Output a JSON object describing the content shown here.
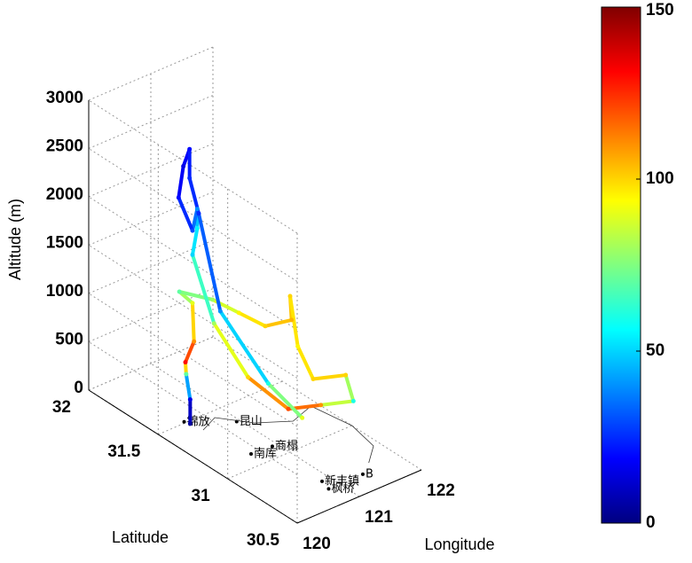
{
  "chart_data": {
    "type": "scatter3d",
    "xlabel": "Longitude",
    "ylabel": "Latitude",
    "zlabel": "Altitude (m)",
    "xlim": [
      120,
      122
    ],
    "xticks": [
      120,
      121,
      122
    ],
    "ylim": [
      30.5,
      32
    ],
    "yticks": [
      30.5,
      31,
      31.5,
      32
    ],
    "zlim": [
      0,
      3000
    ],
    "zticks": [
      0,
      500,
      1000,
      1500,
      2000,
      2500,
      3000
    ],
    "clim": [
      0,
      150
    ],
    "cticks": [
      0,
      50,
      100,
      150
    ],
    "colormap": "jet",
    "grid": true,
    "x": [
      120.47,
      120.47,
      120.45,
      120.55,
      120.8,
      121.0,
      120.9,
      121.1,
      121.3,
      121.5,
      121.7,
      121.9,
      121.8,
      121.6,
      121.9,
      121.8,
      121.5,
      121.2,
      121.0,
      120.9,
      121.0,
      121.3,
      121.3,
      121.0,
      121.0,
      121.3,
      121.4,
      121.4,
      121.1,
      121.0,
      121.1,
      121.2
    ],
    "y": [
      31.48,
      31.48,
      31.5,
      31.55,
      31.6,
      31.7,
      31.75,
      31.6,
      31.5,
      31.4,
      31.3,
      31.4,
      31.3,
      31.1,
      31.0,
      30.9,
      31.0,
      31.1,
      31.3,
      31.5,
      31.7,
      31.8,
      31.8,
      31.7,
      31.8,
      31.9,
      31.9,
      31.9,
      31.7,
      31.5,
      31.2,
      31.0
    ],
    "z": [
      0,
      250,
      500,
      550,
      650,
      900,
      1000,
      1000,
      900,
      800,
      900,
      1000,
      600,
      500,
      550,
      400,
      350,
      300,
      500,
      900,
      1400,
      1500,
      1700,
      1650,
      1900,
      2050,
      2200,
      1900,
      1800,
      1000,
      500,
      300
    ],
    "c": [
      5,
      15,
      70,
      130,
      110,
      90,
      70,
      80,
      95,
      100,
      105,
      100,
      95,
      100,
      100,
      60,
      110,
      120,
      100,
      80,
      50,
      55,
      40,
      30,
      20,
      15,
      20,
      25,
      25,
      40,
      60,
      90
    ],
    "annotations": [
      {
        "text": "锦放",
        "lon": 120.44,
        "lat": 31.51
      },
      {
        "text": "昆山",
        "lon": 120.95,
        "lat": 31.36
      },
      {
        "text": "商榻",
        "lon": 120.92,
        "lat": 31.09
      },
      {
        "text": "南库",
        "lon": 120.6,
        "lat": 31.1
      },
      {
        "text": "新丰镇",
        "lon": 120.87,
        "lat": 30.71
      },
      {
        "text": "枫桥",
        "lon": 120.82,
        "lat": 30.64
      },
      {
        "text": "B",
        "lon": 121.37,
        "lat": 30.64
      }
    ]
  }
}
